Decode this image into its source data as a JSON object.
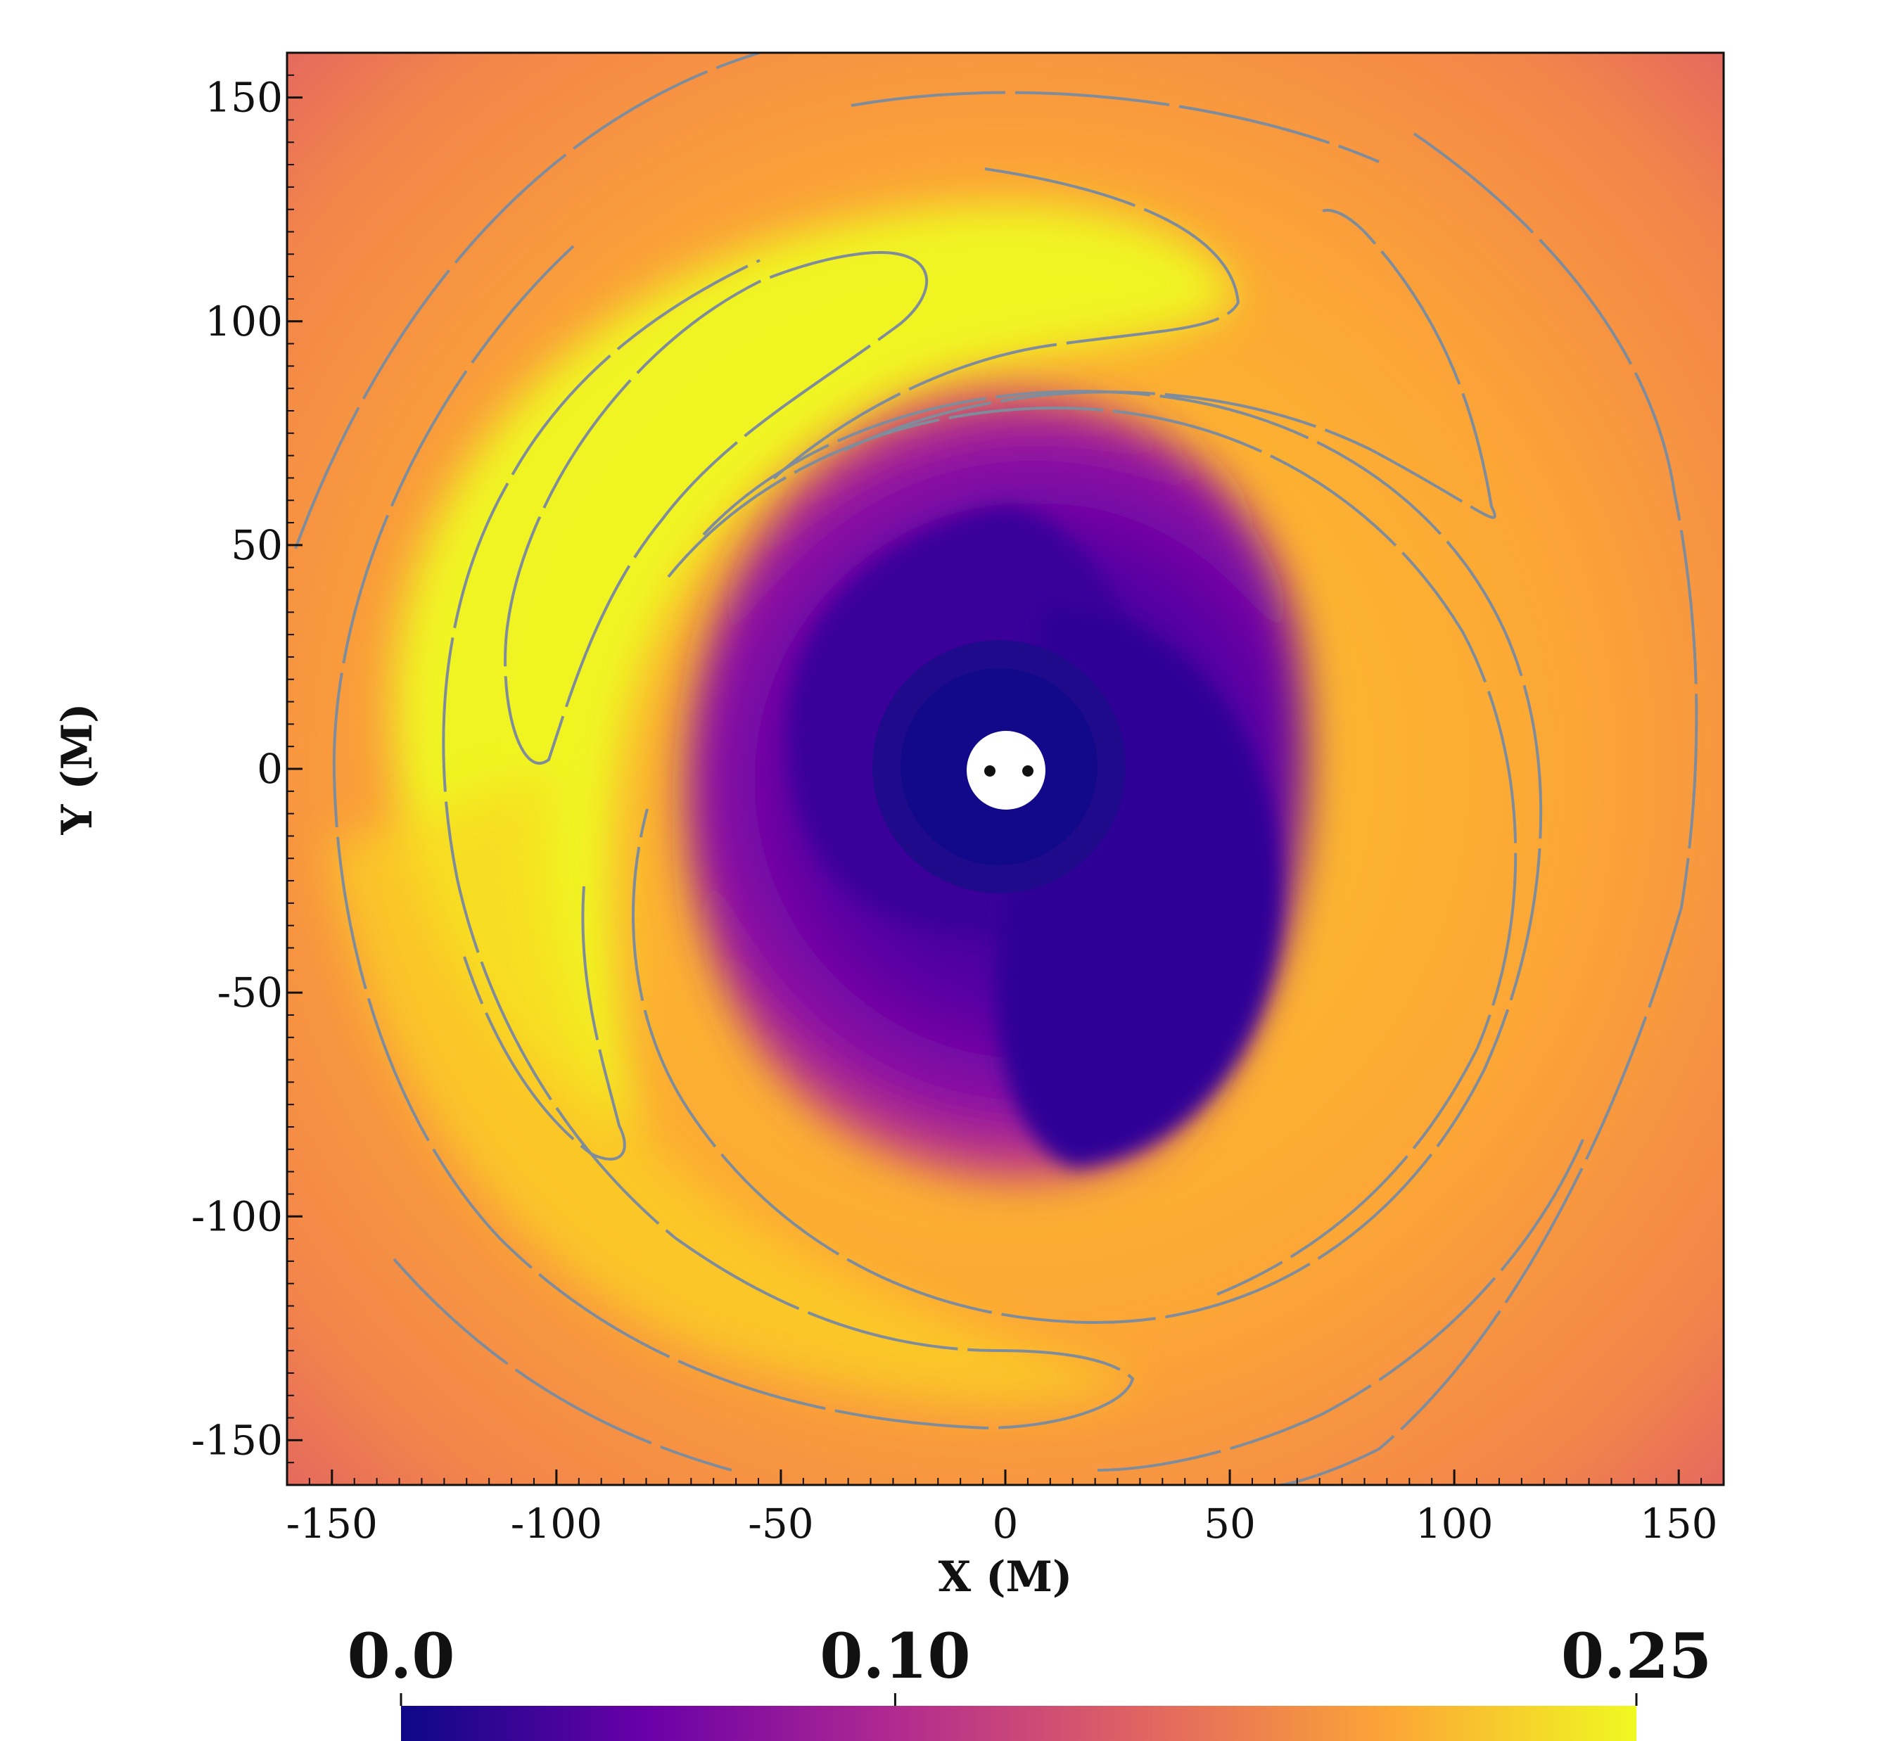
{
  "chart_data": {
    "type": "heatmap",
    "title": "",
    "xlabel": "X (M)",
    "ylabel": "Y (M)",
    "xlim": [
      -160,
      160
    ],
    "ylim": [
      -160,
      160
    ],
    "xticks": [
      -150,
      -100,
      -50,
      0,
      50,
      100,
      150
    ],
    "yticks": [
      150,
      100,
      50,
      0,
      -50,
      -100,
      -150
    ],
    "grid": false,
    "colormap": "plasma",
    "colorbar": {
      "orientation": "horizontal",
      "placement": "bottom",
      "range": [
        0.0,
        0.25
      ],
      "ticks": [
        0.0,
        0.1,
        0.25
      ],
      "tick_labels": [
        "0.0",
        "0.10",
        "0.25"
      ],
      "colors": [
        "#0d0887",
        "#6a00a8",
        "#b12a90",
        "#e16462",
        "#fca636",
        "#f0f921"
      ]
    },
    "field_description": "value near 0 inside cavity, rising to ~0.25 in spiral arm",
    "cavity": {
      "center": [
        0,
        0
      ],
      "radius": 9
    },
    "binary_points": [
      [
        -4,
        0
      ],
      [
        5,
        0
      ]
    ],
    "contour_color": "#7f8c9c"
  }
}
